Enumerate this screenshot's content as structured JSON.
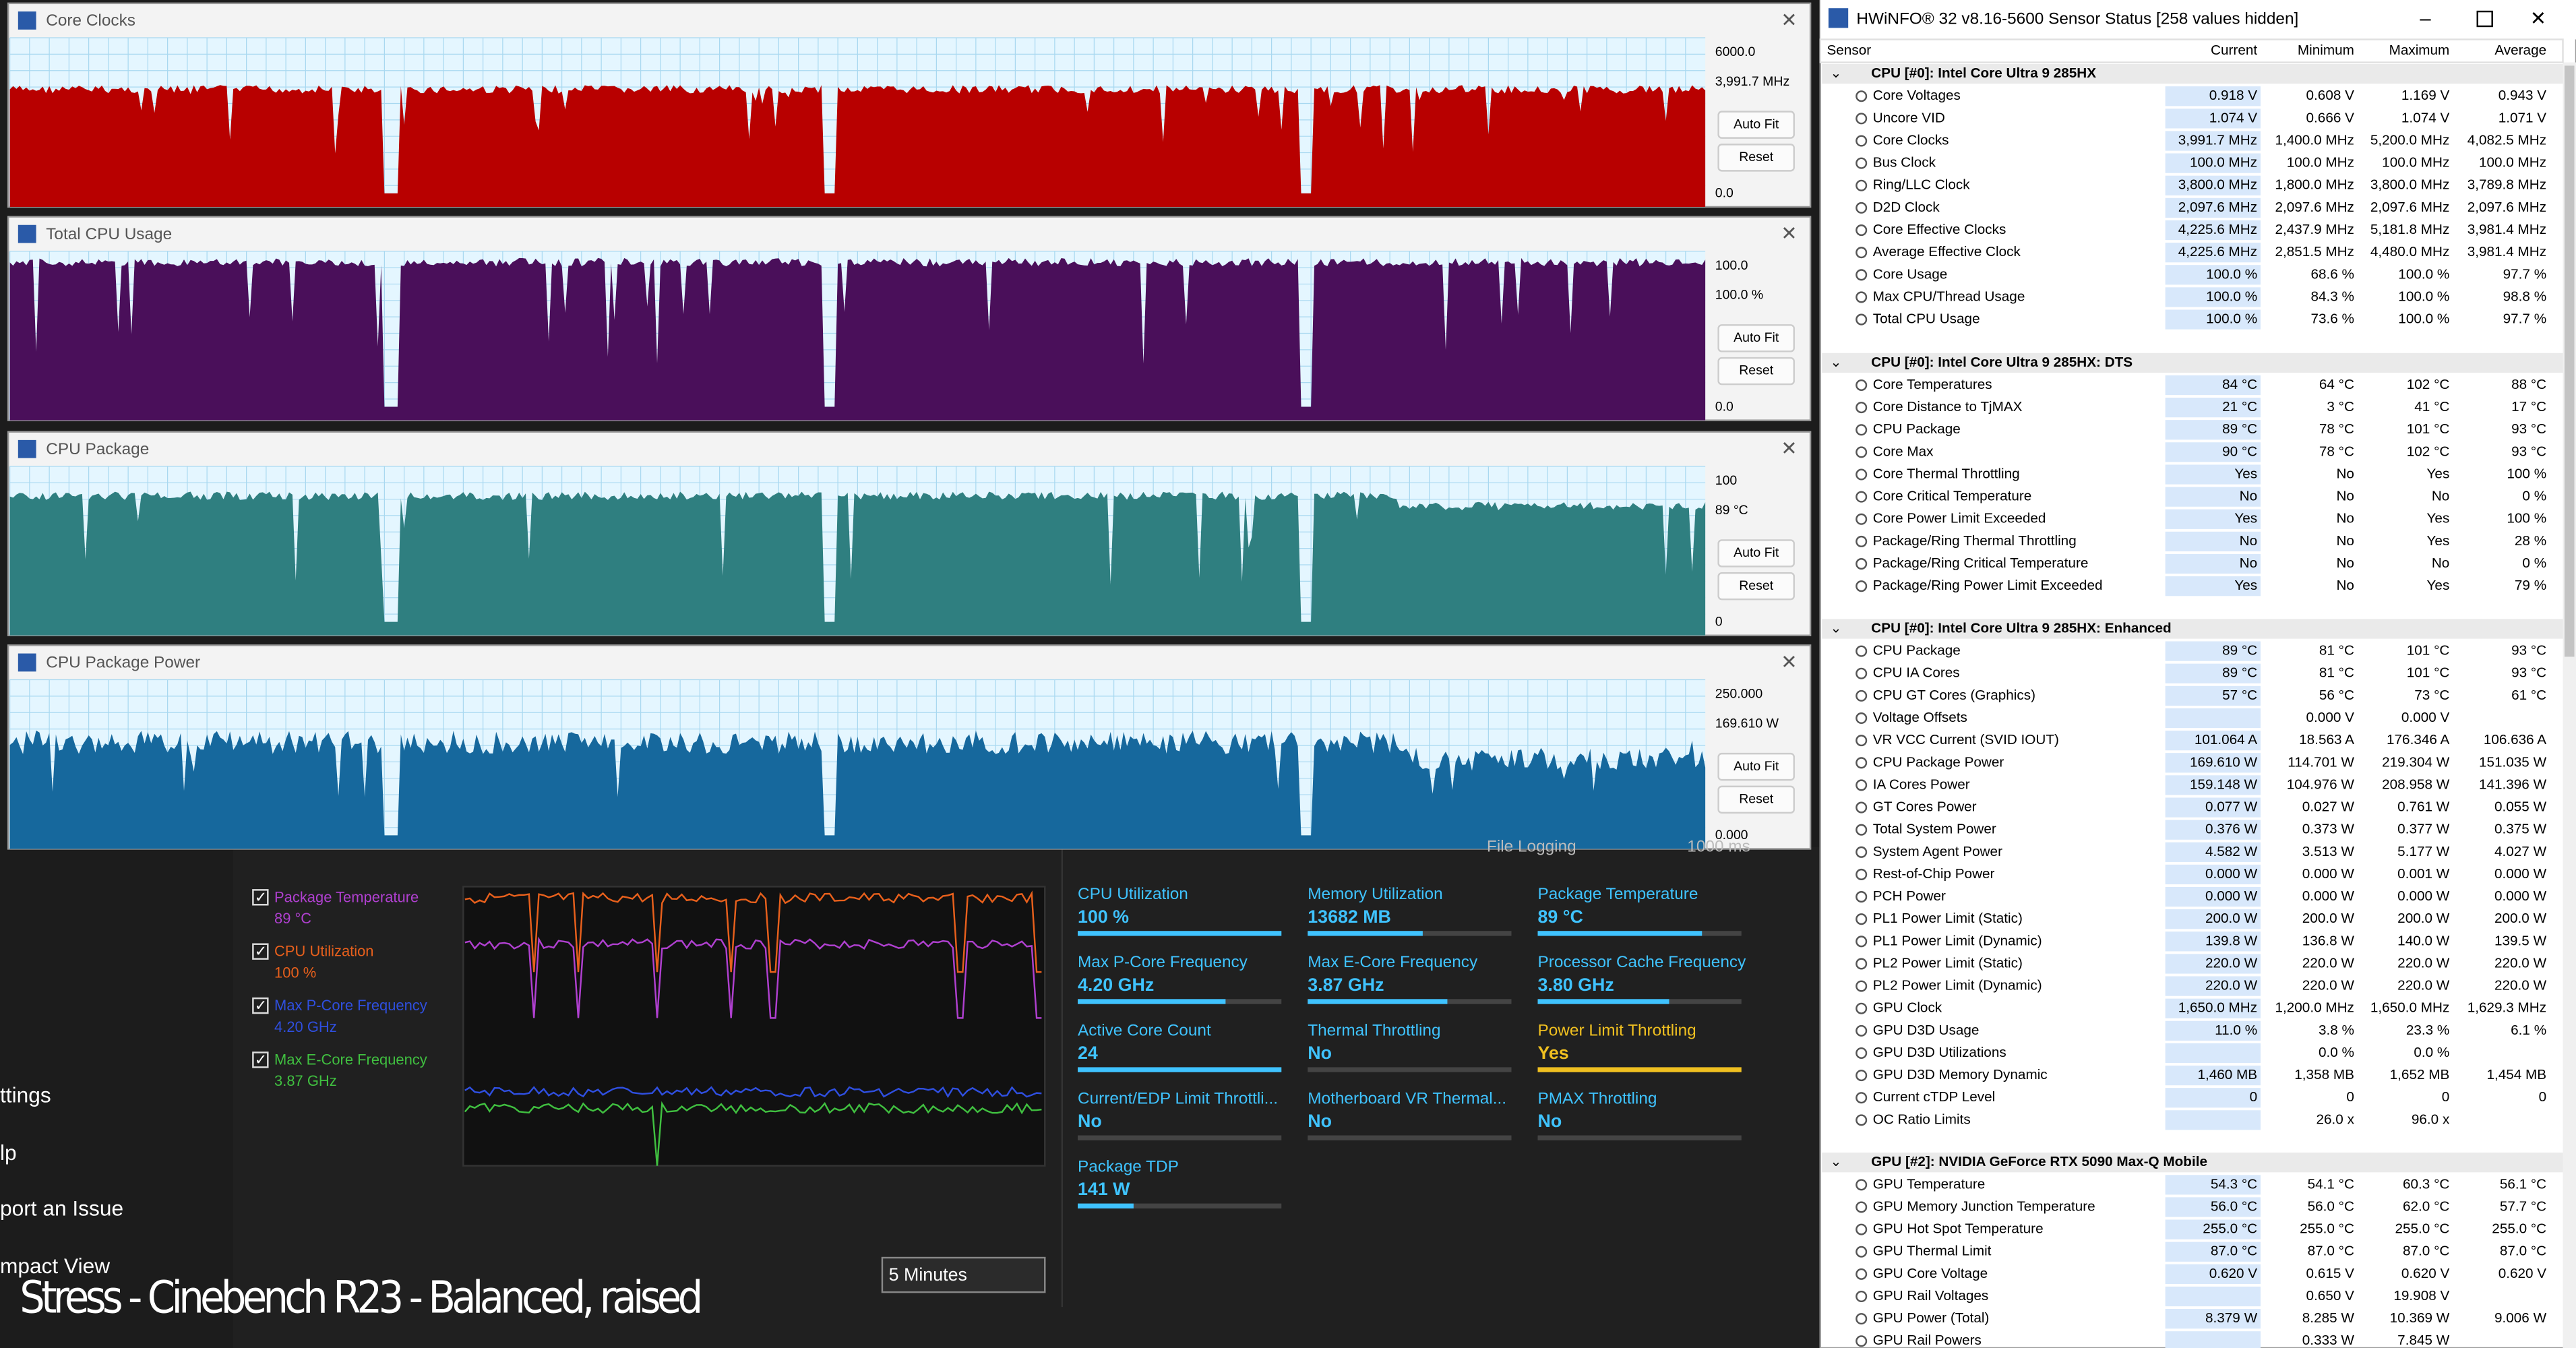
{
  "graphs": [
    {
      "title": "Core Clocks",
      "max": "6000.0",
      "current": "3,991.7 MHz",
      "min": "0.0"
    },
    {
      "title": "Total CPU Usage",
      "max": "100.0",
      "current": "100.0 %",
      "min": "0.0"
    },
    {
      "title": "CPU Package",
      "max": "100",
      "current": "89 °C",
      "min": "0"
    },
    {
      "title": "CPU Package Power",
      "max": "250.000",
      "current": "169.610 W",
      "min": "0.000"
    }
  ],
  "graph_buttons": [
    "Auto Fit",
    "Reset"
  ],
  "sensor_window": {
    "title": "HWiNFO® 32 v8.16-5600 Sensor Status [258 values hidden]",
    "columns": [
      "Sensor",
      "Current",
      "Minimum",
      "Maximum",
      "Average"
    ],
    "groups": [
      {
        "name": "CPU [#0]: Intel Core Ultra 9 285HX",
        "rows": [
          [
            "Core Voltages",
            "0.918 V",
            "0.608 V",
            "1.169 V",
            "0.943 V"
          ],
          [
            "Uncore VID",
            "1.074 V",
            "0.666 V",
            "1.074 V",
            "1.071 V"
          ],
          [
            "Core Clocks",
            "3,991.7 MHz",
            "1,400.0 MHz",
            "5,200.0 MHz",
            "4,082.5 MHz"
          ],
          [
            "Bus Clock",
            "100.0 MHz",
            "100.0 MHz",
            "100.0 MHz",
            "100.0 MHz"
          ],
          [
            "Ring/LLC Clock",
            "3,800.0 MHz",
            "1,800.0 MHz",
            "3,800.0 MHz",
            "3,789.8 MHz"
          ],
          [
            "D2D Clock",
            "2,097.6 MHz",
            "2,097.6 MHz",
            "2,097.6 MHz",
            "2,097.6 MHz"
          ],
          [
            "Core Effective Clocks",
            "4,225.6 MHz",
            "2,437.9 MHz",
            "5,181.8 MHz",
            "3,981.4 MHz"
          ],
          [
            "Average Effective Clock",
            "4,225.6 MHz",
            "2,851.5 MHz",
            "4,480.0 MHz",
            "3,981.4 MHz"
          ],
          [
            "Core Usage",
            "100.0 %",
            "68.6 %",
            "100.0 %",
            "97.7 %"
          ],
          [
            "Max CPU/Thread Usage",
            "100.0 %",
            "84.3 %",
            "100.0 %",
            "98.8 %"
          ],
          [
            "Total CPU Usage",
            "100.0 %",
            "73.6 %",
            "100.0 %",
            "97.7 %"
          ]
        ]
      },
      {
        "name": "CPU [#0]: Intel Core Ultra 9 285HX: DTS",
        "rows": [
          [
            "Core Temperatures",
            "84 °C",
            "64 °C",
            "102 °C",
            "88 °C"
          ],
          [
            "Core Distance to TjMAX",
            "21 °C",
            "3 °C",
            "41 °C",
            "17 °C"
          ],
          [
            "CPU Package",
            "89 °C",
            "78 °C",
            "101 °C",
            "93 °C"
          ],
          [
            "Core Max",
            "90 °C",
            "78 °C",
            "102 °C",
            "93 °C"
          ],
          [
            "Core Thermal Throttling",
            "Yes",
            "No",
            "Yes",
            "100 %"
          ],
          [
            "Core Critical Temperature",
            "No",
            "No",
            "No",
            "0 %"
          ],
          [
            "Core Power Limit Exceeded",
            "Yes",
            "No",
            "Yes",
            "100 %"
          ],
          [
            "Package/Ring Thermal Throttling",
            "No",
            "No",
            "Yes",
            "28 %"
          ],
          [
            "Package/Ring Critical Temperature",
            "No",
            "No",
            "No",
            "0 %"
          ],
          [
            "Package/Ring Power Limit Exceeded",
            "Yes",
            "No",
            "Yes",
            "79 %"
          ]
        ]
      },
      {
        "name": "CPU [#0]: Intel Core Ultra 9 285HX: Enhanced",
        "rows": [
          [
            "CPU Package",
            "89 °C",
            "81 °C",
            "101 °C",
            "93 °C"
          ],
          [
            "CPU IA Cores",
            "89 °C",
            "81 °C",
            "101 °C",
            "93 °C"
          ],
          [
            "CPU GT Cores (Graphics)",
            "57 °C",
            "56 °C",
            "73 °C",
            "61 °C"
          ],
          [
            "Voltage Offsets",
            null,
            "0.000 V",
            "0.000 V",
            null
          ],
          [
            "VR VCC Current (SVID IOUT)",
            "101.064 A",
            "18.563 A",
            "176.346 A",
            "106.636 A"
          ],
          [
            "CPU Package Power",
            "169.610 W",
            "114.701 W",
            "219.304 W",
            "151.035 W"
          ],
          [
            "IA Cores Power",
            "159.148 W",
            "104.976 W",
            "208.958 W",
            "141.396 W"
          ],
          [
            "GT Cores Power",
            "0.077 W",
            "0.027 W",
            "0.761 W",
            "0.055 W"
          ],
          [
            "Total System Power",
            "0.376 W",
            "0.373 W",
            "0.377 W",
            "0.375 W"
          ],
          [
            "System Agent Power",
            "4.582 W",
            "3.513 W",
            "5.177 W",
            "4.027 W"
          ],
          [
            "Rest-of-Chip Power",
            "0.000 W",
            "0.000 W",
            "0.001 W",
            "0.000 W"
          ],
          [
            "PCH Power",
            "0.000 W",
            "0.000 W",
            "0.000 W",
            "0.000 W"
          ],
          [
            "PL1 Power Limit (Static)",
            "200.0 W",
            "200.0 W",
            "200.0 W",
            "200.0 W"
          ],
          [
            "PL1 Power Limit (Dynamic)",
            "139.8 W",
            "136.8 W",
            "140.0 W",
            "139.5 W"
          ],
          [
            "PL2 Power Limit (Static)",
            "220.0 W",
            "220.0 W",
            "220.0 W",
            "220.0 W"
          ],
          [
            "PL2 Power Limit (Dynamic)",
            "220.0 W",
            "220.0 W",
            "220.0 W",
            "220.0 W"
          ],
          [
            "GPU Clock",
            "1,650.0 MHz",
            "1,200.0 MHz",
            "1,650.0 MHz",
            "1,629.3 MHz"
          ],
          [
            "GPU D3D Usage",
            "11.0 %",
            "3.8 %",
            "23.3 %",
            "6.1 %"
          ],
          [
            "GPU D3D Utilizations",
            null,
            "0.0 %",
            "0.0 %",
            null
          ],
          [
            "GPU D3D Memory Dynamic",
            "1,460 MB",
            "1,358 MB",
            "1,652 MB",
            "1,454 MB"
          ],
          [
            "Current cTDP Level",
            "0",
            "0",
            "0",
            "0"
          ],
          [
            "OC Ratio Limits",
            null,
            "26.0 x",
            "96.0 x",
            null
          ]
        ]
      },
      {
        "name": "GPU [#2]: NVIDIA  GeForce RTX 5090 Max-Q Mobile",
        "rows": [
          [
            "GPU Temperature",
            "54.3 °C",
            "54.1 °C",
            "60.3 °C",
            "56.1 °C"
          ],
          [
            "GPU Memory Junction Temperature",
            "56.0 °C",
            "56.0 °C",
            "62.0 °C",
            "57.7 °C"
          ],
          [
            "GPU Hot Spot Temperature",
            "255.0 °C",
            "255.0 °C",
            "255.0 °C",
            "255.0 °C"
          ],
          [
            "GPU Thermal Limit",
            "87.0 °C",
            "87.0 °C",
            "87.0 °C",
            "87.0 °C"
          ],
          [
            "GPU Core Voltage",
            "0.620 V",
            "0.615 V",
            "0.620 V",
            "0.620 V"
          ],
          [
            "GPU Rail Voltages",
            null,
            "0.650 V",
            "19.908 V",
            null
          ],
          [
            "GPU Power (Total)",
            "8.379 W",
            "8.285 W",
            "10.369 W",
            "9.006 W"
          ],
          [
            "GPU Rail Powers",
            null,
            "0.333 W",
            "7.845 W",
            null
          ]
        ]
      }
    ]
  },
  "monitor_legend": [
    {
      "label": "Package Temperature",
      "value": "89 °C",
      "color": "#b040d0"
    },
    {
      "label": "CPU Utilization",
      "value": "100 %",
      "color": "#e8601c"
    },
    {
      "label": "Max P-Core Frequency",
      "value": "4.20 GHz",
      "color": "#2f4fe0"
    },
    {
      "label": "Max E-Core Frequency",
      "value": "3.87 GHz",
      "color": "#40c040"
    }
  ],
  "metrics": [
    {
      "label": "CPU Utilization",
      "value": "100 %"
    },
    {
      "label": "Memory Utilization",
      "value": "13682 MB"
    },
    {
      "label": "Package Temperature",
      "value": "89 °C"
    },
    {
      "label": "Max P-Core Frequency",
      "value": "4.20 GHz"
    },
    {
      "label": "Max E-Core Frequency",
      "value": "3.87 GHz"
    },
    {
      "label": "Processor Cache Frequency",
      "value": "3.80 GHz"
    },
    {
      "label": "Active Core Count",
      "value": "24"
    },
    {
      "label": "Thermal Throttling",
      "value": "No"
    },
    {
      "label": "Power Limit Throttling",
      "value": "Yes",
      "color": "#f0c020"
    },
    {
      "label": "Current/EDP Limit Throttli...",
      "value": "No"
    },
    {
      "label": "Motherboard VR Thermal...",
      "value": "No"
    },
    {
      "label": "PMAX Throttling",
      "value": "No"
    },
    {
      "label": "Package TDP",
      "value": "141 W"
    }
  ],
  "time_range": "5 Minutes",
  "logging": {
    "button": "File Logging",
    "interval": "1000 ms"
  },
  "sidebar": [
    "ttings",
    "lp",
    "port an Issue",
    "mpact View"
  ],
  "caption": "Stress - Cinebench R23 - Balanced, raised"
}
